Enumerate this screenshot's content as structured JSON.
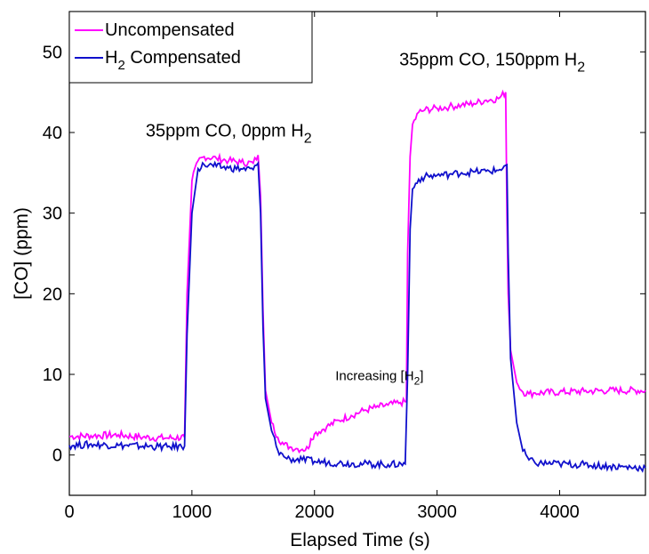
{
  "chart_data": {
    "type": "line",
    "xlabel": "Elapsed Time (s)",
    "ylabel": "[CO] (ppm)",
    "xlim": [
      0,
      4700
    ],
    "ylim": [
      -5,
      55
    ],
    "x_ticks": [
      "0",
      "1000",
      "2000",
      "3000",
      "4000"
    ],
    "y_ticks": [
      "0",
      "10",
      "20",
      "30",
      "40",
      "50"
    ],
    "grid": false,
    "legend_position": "top-left",
    "series": [
      {
        "name": "Uncompensated",
        "color": "#ff00ff",
        "x": [
          0,
          200,
          400,
          600,
          800,
          940,
          960,
          1000,
          1050,
          1100,
          1200,
          1300,
          1400,
          1500,
          1540,
          1560,
          1580,
          1600,
          1650,
          1700,
          1750,
          1800,
          1850,
          1900,
          1950,
          1970,
          2000,
          2100,
          2200,
          2300,
          2400,
          2500,
          2600,
          2700,
          2750,
          2760,
          2780,
          2800,
          2850,
          2900,
          3000,
          3100,
          3200,
          3300,
          3400,
          3500,
          3560,
          3570,
          3580,
          3600,
          3650,
          3700,
          3750,
          3800,
          4000,
          4200,
          4400,
          4700
        ],
        "y": [
          2.3,
          2.4,
          2.5,
          2.2,
          2.1,
          2.2,
          20,
          34,
          36.5,
          37,
          36.8,
          36.5,
          36.3,
          36.2,
          37.2,
          32,
          18,
          8,
          4,
          2.2,
          1.3,
          1,
          0.8,
          0.7,
          0.8,
          2,
          2.6,
          3.5,
          4.3,
          4.9,
          5.5,
          5.9,
          6.2,
          6.5,
          6.6,
          25,
          37,
          41,
          42.5,
          42.8,
          43,
          43.2,
          43.4,
          43.6,
          44,
          44.2,
          45,
          30,
          20,
          13,
          9,
          7.8,
          7.6,
          7.7,
          7.8,
          7.9,
          8,
          8
        ]
      },
      {
        "name": "H2 Compensated",
        "color": "#1010cc",
        "x": [
          0,
          200,
          400,
          600,
          800,
          940,
          960,
          1000,
          1050,
          1100,
          1200,
          1300,
          1400,
          1500,
          1540,
          1560,
          1580,
          1600,
          1650,
          1700,
          1750,
          1800,
          1900,
          2000,
          2200,
          2400,
          2600,
          2740,
          2760,
          2780,
          2800,
          2850,
          2900,
          3000,
          3100,
          3200,
          3300,
          3400,
          3500,
          3570,
          3580,
          3600,
          3650,
          3700,
          3750,
          3800,
          4000,
          4200,
          4400,
          4700
        ],
        "y": [
          1.2,
          1.3,
          1.2,
          1.1,
          1.0,
          1.1,
          15,
          30,
          35.5,
          36,
          35.8,
          35.6,
          35.5,
          35.4,
          36.2,
          30,
          16,
          7,
          3,
          0.6,
          -0.2,
          -0.5,
          -0.6,
          -0.8,
          -1,
          -1.1,
          -1.2,
          -1.1,
          10,
          28,
          33,
          34.2,
          34.5,
          34.7,
          34.8,
          35,
          35.1,
          35.2,
          35.3,
          36,
          25,
          12,
          4,
          0.5,
          -0.6,
          -1,
          -1.1,
          -1.2,
          -1.4,
          -1.6
        ]
      }
    ],
    "annotations": [
      {
        "text": "35ppm CO, 0ppm H",
        "sub": "2",
        "x": 1300,
        "y": 39.5
      },
      {
        "text": "35ppm CO, 150ppm H",
        "sub": "2",
        "x": 3450,
        "y": 48.3
      },
      {
        "text": "Increasing [H",
        "sub": "2",
        "tail": "]",
        "x": 2530,
        "y": 9.3
      }
    ],
    "legend": [
      {
        "label": "Uncompensated",
        "color": "#ff00ff"
      },
      {
        "label": "H",
        "sub": "2",
        "tail": " Compensated",
        "color": "#1010cc"
      }
    ]
  }
}
